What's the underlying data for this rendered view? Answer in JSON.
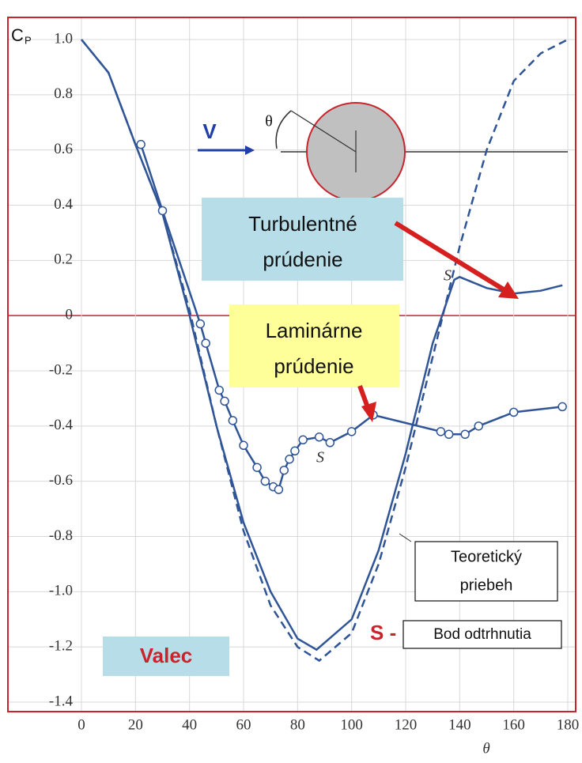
{
  "chart_data": {
    "type": "line",
    "ylabel": "C",
    "ylabel_sub": "P",
    "xlabel": "θ",
    "xlim": [
      0,
      180
    ],
    "ylim": [
      -1.4,
      1.0
    ],
    "xticks": [
      0,
      20,
      40,
      60,
      80,
      100,
      120,
      140,
      160,
      180
    ],
    "yticks": [
      {
        "value": 1.0,
        "label": "1.0"
      },
      0.8,
      0.6,
      0.4,
      0.2,
      0,
      -0.2,
      -0.4,
      -0.6,
      -0.8,
      {
        "value": -1.0,
        "label": "-1.0"
      },
      -1.2,
      -1.4
    ],
    "grid": true,
    "series": [
      {
        "color": "#2f5597",
        "style": "dashed",
        "markers": false,
        "x": [
          0,
          10,
          20,
          30,
          40,
          50,
          60,
          70,
          80,
          88,
          100,
          110,
          120,
          130,
          140,
          150,
          160,
          170,
          180
        ],
        "values": [
          1.0,
          0.88,
          0.62,
          0.37,
          0.02,
          -0.4,
          -0.78,
          -1.05,
          -1.2,
          -1.25,
          -1.15,
          -0.9,
          -0.55,
          -0.15,
          0.25,
          0.6,
          0.85,
          0.95,
          1.0
        ]
      },
      {
        "color": "#2f5597",
        "style": "solid",
        "markers": false,
        "x": [
          0,
          10,
          20,
          30,
          40,
          50,
          60,
          70,
          80,
          87,
          100,
          110,
          120,
          130,
          138,
          140,
          150,
          160,
          170,
          178
        ],
        "values": [
          1.0,
          0.88,
          0.62,
          0.37,
          0.0,
          -0.4,
          -0.75,
          -1.0,
          -1.17,
          -1.21,
          -1.1,
          -0.85,
          -0.5,
          -0.1,
          0.13,
          0.14,
          0.1,
          0.08,
          0.09,
          0.11
        ]
      },
      {
        "color": "#2f5597",
        "style": "solid",
        "markers": true,
        "x": [
          22,
          30,
          44,
          46,
          51,
          53,
          56,
          60,
          65,
          68,
          71,
          73,
          75,
          77,
          79,
          82,
          88,
          92,
          100,
          108,
          133,
          136,
          142,
          147,
          160,
          178
        ],
        "values": [
          0.62,
          0.38,
          -0.03,
          -0.1,
          -0.27,
          -0.31,
          -0.38,
          -0.47,
          -0.55,
          -0.6,
          -0.62,
          -0.63,
          -0.56,
          -0.52,
          -0.49,
          -0.45,
          -0.44,
          -0.46,
          -0.42,
          -0.36,
          -0.42,
          -0.43,
          -0.43,
          -0.4,
          -0.35,
          -0.33
        ]
      }
    ],
    "annotations": [
      {
        "lines": [
          "V"
        ]
      },
      {
        "lines": [
          "θ"
        ]
      },
      {
        "lines": [
          "Turbulentné",
          "prúdenie"
        ]
      },
      {
        "lines": [
          "Laminárne",
          "prúdenie"
        ]
      },
      {
        "lines": [
          "Teoretický",
          "priebeh"
        ]
      },
      {
        "lines": [
          "S -",
          "Bod odtrhnutia"
        ]
      },
      {
        "lines": [
          "Valec"
        ]
      },
      {
        "lines": [
          "S"
        ]
      },
      {
        "lines": [
          "S"
        ]
      }
    ]
  }
}
